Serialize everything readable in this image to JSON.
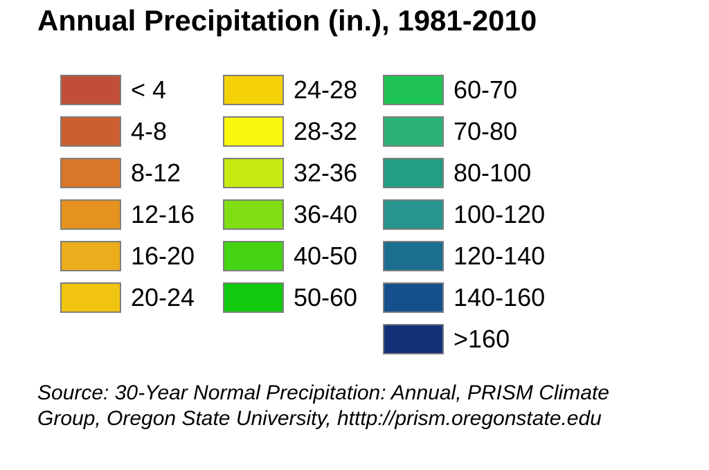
{
  "title": "Annual Precipitation (in.), 1981-2010",
  "legend": {
    "swatch_border_color": "#7E7E7E",
    "columns": [
      {
        "entries": [
          {
            "label": "< 4",
            "color": "#C14F38"
          },
          {
            "label": "4-8",
            "color": "#CC5F2F"
          },
          {
            "label": "8-12",
            "color": "#D9772A"
          },
          {
            "label": "12-16",
            "color": "#E6921E"
          },
          {
            "label": "16-20",
            "color": "#EBAD1B"
          },
          {
            "label": "20-24",
            "color": "#F0C40F"
          }
        ]
      },
      {
        "entries": [
          {
            "label": "24-28",
            "color": "#F5D108"
          },
          {
            "label": "28-32",
            "color": "#FAF60C"
          },
          {
            "label": "32-36",
            "color": "#C6EC11"
          },
          {
            "label": "36-40",
            "color": "#7FDF12"
          },
          {
            "label": "40-50",
            "color": "#44D414"
          },
          {
            "label": "50-60",
            "color": "#12CB0F"
          }
        ]
      },
      {
        "entries": [
          {
            "label": "60-70",
            "color": "#1FC353"
          },
          {
            "label": "70-80",
            "color": "#2BB377"
          },
          {
            "label": "80-100",
            "color": "#219E84"
          },
          {
            "label": "100-120",
            "color": "#27948E"
          },
          {
            "label": "120-140",
            "color": "#1D6F8F"
          },
          {
            "label": "140-160",
            "color": "#15508C"
          },
          {
            "label": ">160",
            "color": "#123179"
          }
        ]
      }
    ]
  },
  "source": {
    "line1": "Source: 30-Year Normal Precipitation: Annual, PRISM Climate",
    "line2": "Group, Oregon State University, htttp://prism.oregonstate.edu"
  }
}
